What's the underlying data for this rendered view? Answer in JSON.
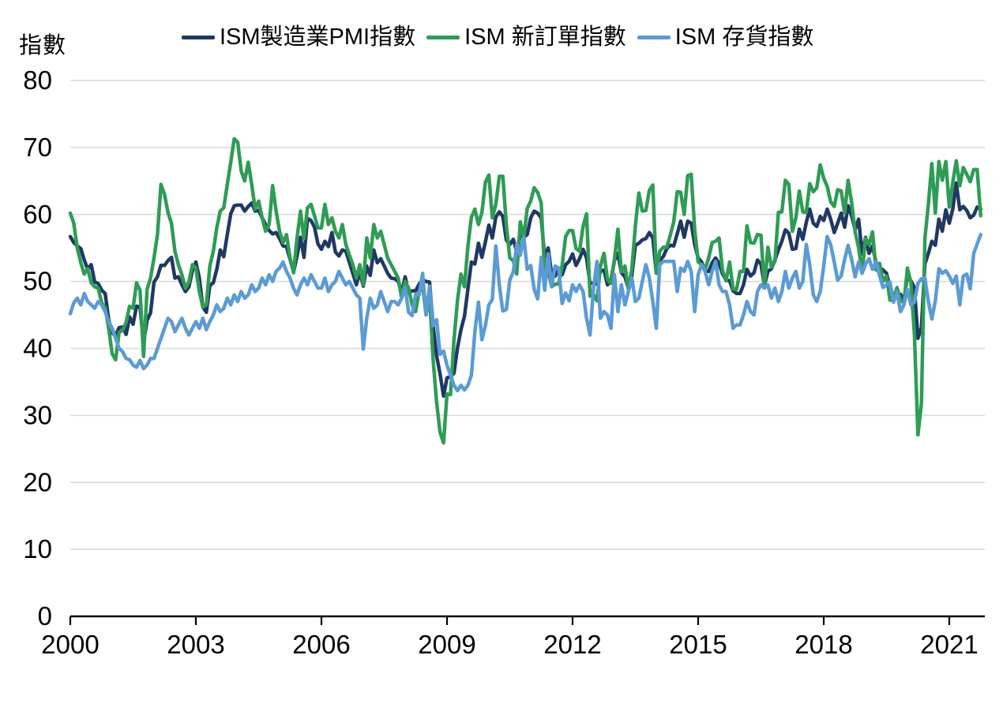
{
  "y_axis_title": "指數",
  "legend": [
    {
      "label": "ISM製造業PMI指數",
      "color": "#1F3864"
    },
    {
      "label": "ISM 新訂單指數",
      "color": "#2E9C55"
    },
    {
      "label": "ISM 存貨指數",
      "color": "#5B9BD5"
    }
  ],
  "chart_data": {
    "type": "line",
    "title": "",
    "x_start": "2000-01",
    "x_end": "2021-10",
    "frequency": "monthly",
    "x_ticks": [
      2000,
      2003,
      2006,
      2009,
      2012,
      2015,
      2018,
      2021
    ],
    "y_ticks": [
      0,
      10,
      20,
      30,
      40,
      50,
      60,
      70,
      80
    ],
    "ylim": [
      0,
      80
    ],
    "grid": "horizontal",
    "legend_position": "top",
    "colors": {
      "gridline": "#D9D9D9",
      "axis": "#000000"
    },
    "series": [
      {
        "name": "ISM製造業PMI指數",
        "color": "#1F3864",
        "values": [
          56.7,
          55.8,
          55.3,
          54.9,
          53.2,
          51.8,
          52.5,
          49.9,
          49.7,
          48.7,
          48.2,
          44.3,
          42.3,
          41.9,
          43.1,
          43.2,
          42.1,
          44.7,
          43.6,
          46.3,
          46.2,
          40.8,
          44.2,
          45.3,
          49.9,
          50.7,
          52.4,
          52.4,
          53.1,
          53.6,
          50.5,
          50.7,
          49.5,
          48.5,
          49.2,
          51.6,
          52.9,
          50.5,
          46.2,
          45.4,
          49.4,
          49.8,
          51.8,
          54.7,
          53.7,
          57.0,
          60.1,
          61.3,
          61.4,
          61.4,
          60.5,
          61.2,
          61.7,
          60.5,
          60.6,
          59.5,
          58.5,
          57.6,
          57.1,
          57.3,
          56.4,
          55.3,
          55.2,
          53.3,
          51.4,
          53.8,
          56.6,
          53.6,
          59.4,
          59.1,
          58.1,
          55.6,
          54.8,
          56.0,
          55.2,
          57.3,
          54.4,
          53.8,
          54.7,
          54.5,
          52.9,
          51.2,
          49.5,
          51.4,
          49.3,
          52.3,
          50.9,
          54.7,
          52.8,
          53.4,
          52.3,
          51.2,
          50.5,
          50.4,
          50.0,
          48.4,
          50.7,
          48.3,
          48.6,
          48.6,
          49.6,
          50.2,
          50.0,
          49.9,
          43.5,
          38.9,
          36.2,
          32.9,
          35.6,
          35.8,
          36.3,
          40.1,
          42.8,
          44.8,
          48.9,
          52.9,
          52.6,
          55.7,
          53.6,
          55.9,
          58.4,
          56.5,
          59.6,
          60.4,
          59.7,
          56.2,
          55.5,
          56.3,
          54.4,
          56.9,
          56.6,
          57.0,
          59.5,
          60.5,
          60.2,
          59.5,
          53.5,
          55.0,
          51.0,
          50.8,
          51.8,
          51.0,
          52.5,
          53.0,
          54.1,
          52.4,
          53.4,
          54.8,
          53.5,
          49.7,
          49.8,
          49.6,
          51.5,
          51.7,
          49.5,
          50.2,
          53.1,
          54.2,
          51.3,
          50.7,
          49.0,
          50.9,
          55.4,
          55.7,
          56.2,
          56.4,
          57.3,
          56.5,
          51.3,
          53.2,
          53.7,
          54.9,
          55.4,
          55.3,
          57.1,
          59.0,
          56.6,
          59.0,
          58.7,
          55.5,
          53.5,
          52.9,
          51.5,
          51.5,
          52.8,
          53.5,
          52.7,
          51.1,
          50.2,
          50.1,
          48.6,
          48.2,
          48.2,
          49.5,
          51.8,
          50.8,
          51.3,
          53.2,
          52.6,
          49.4,
          51.5,
          51.9,
          53.2,
          54.7,
          56.0,
          57.7,
          57.2,
          54.8,
          54.9,
          57.8,
          56.3,
          58.8,
          60.8,
          58.7,
          58.2,
          59.7,
          59.1,
          60.8,
          59.3,
          57.3,
          58.7,
          60.2,
          58.1,
          61.3,
          59.8,
          57.7,
          59.3,
          54.1,
          56.6,
          54.2,
          55.3,
          52.8,
          52.1,
          51.7,
          51.2,
          49.1,
          47.8,
          48.3,
          48.1,
          47.2,
          50.9,
          50.1,
          49.1,
          41.5,
          43.1,
          52.6,
          54.2,
          56.0,
          55.4,
          59.3,
          57.5,
          60.7,
          58.7,
          60.8,
          64.7,
          60.7,
          61.2,
          60.6,
          59.5,
          59.9,
          61.1,
          60.8
        ]
      },
      {
        "name": "ISM 新訂單指數",
        "color": "#2E9C55",
        "values": [
          60.2,
          58.7,
          55.0,
          52.8,
          51.1,
          51.9,
          49.8,
          49.2,
          49.0,
          46.8,
          46.1,
          43.0,
          39.2,
          38.3,
          42.4,
          42.7,
          43.9,
          46.3,
          46.0,
          49.8,
          48.7,
          38.8,
          48.8,
          50.5,
          53.5,
          57.0,
          64.5,
          63.0,
          60.3,
          58.7,
          54.5,
          52.5,
          51.0,
          49.0,
          49.9,
          52.5,
          52.0,
          48.5,
          46.2,
          46.5,
          52.3,
          54.5,
          58.0,
          60.5,
          61.0,
          64.5,
          67.8,
          71.3,
          70.8,
          66.5,
          65.0,
          67.8,
          64.5,
          60.8,
          62.0,
          59.5,
          57.5,
          58.5,
          64.3,
          60.5,
          57.5,
          55.8,
          57.0,
          53.5,
          51.3,
          56.5,
          60.5,
          56.4,
          61.0,
          61.5,
          59.8,
          58.0,
          58.0,
          61.5,
          58.5,
          59.5,
          57.5,
          56.5,
          58.5,
          55.5,
          54.0,
          52.5,
          50.5,
          52.5,
          49.5,
          56.5,
          53.5,
          58.5,
          56.5,
          57.5,
          55.5,
          53.5,
          52.5,
          51.5,
          50.5,
          47.5,
          50.0,
          49.0,
          46.5,
          45.5,
          48.5,
          49.5,
          45.0,
          48.0,
          38.5,
          32.0,
          27.5,
          25.9,
          33.2,
          33.1,
          41.2,
          47.2,
          51.1,
          49.2,
          55.3,
          59.6,
          60.8,
          58.5,
          60.3,
          64.8,
          65.9,
          59.5,
          61.5,
          65.7,
          65.7,
          58.5,
          53.5,
          53.1,
          51.1,
          58.9,
          56.6,
          60.9,
          62.0,
          64.0,
          63.3,
          61.7,
          51.0,
          51.6,
          49.2,
          49.6,
          49.6,
          52.4,
          56.7,
          57.6,
          57.6,
          54.9,
          54.5,
          58.2,
          60.1,
          47.8,
          48.0,
          47.1,
          52.3,
          54.2,
          50.3,
          49.7,
          53.3,
          57.8,
          51.4,
          52.3,
          48.8,
          51.9,
          58.3,
          63.2,
          60.5,
          60.6,
          63.6,
          64.4,
          51.2,
          54.5,
          55.1,
          55.1,
          56.9,
          58.9,
          63.4,
          63.3,
          60.0,
          65.8,
          66.0,
          57.8,
          52.9,
          52.5,
          51.8,
          53.5,
          55.8,
          56.0,
          56.5,
          51.6,
          50.1,
          52.9,
          48.9,
          48.8,
          51.5,
          51.5,
          58.3,
          55.8,
          55.7,
          57.0,
          56.9,
          49.1,
          55.1,
          52.1,
          53.0,
          60.3,
          60.4,
          65.1,
          64.5,
          57.5,
          59.5,
          63.5,
          60.4,
          60.3,
          64.6,
          63.4,
          64.0,
          67.4,
          65.4,
          64.2,
          61.9,
          61.2,
          63.7,
          63.5,
          60.2,
          65.1,
          61.8,
          57.4,
          55.0,
          51.3,
          56.5,
          55.5,
          57.4,
          51.7,
          52.7,
          50.0,
          50.8,
          47.2,
          47.3,
          49.1,
          47.2,
          46.8,
          52.0,
          49.8,
          42.2,
          27.1,
          31.8,
          56.4,
          61.5,
          67.6,
          60.2,
          67.9,
          65.1,
          67.9,
          61.1,
          64.8,
          68.0,
          64.3,
          67.0,
          66.0,
          64.9,
          66.7,
          66.7,
          59.8
        ]
      },
      {
        "name": "ISM 存貨指數",
        "color": "#5B9BD5",
        "values": [
          45.2,
          46.8,
          47.5,
          46.5,
          48.2,
          47.0,
          46.5,
          46.0,
          47.0,
          46.5,
          45.5,
          44.0,
          43.0,
          41.5,
          40.0,
          39.5,
          38.5,
          38.3,
          37.5,
          37.2,
          38.2,
          37.0,
          37.5,
          38.5,
          38.5,
          40.0,
          41.5,
          43.0,
          44.5,
          44.0,
          42.5,
          43.5,
          44.5,
          43.0,
          42.0,
          43.0,
          44.0,
          43.0,
          44.5,
          42.8,
          44.0,
          45.0,
          46.5,
          45.5,
          46.0,
          47.5,
          46.5,
          48.0,
          47.0,
          48.5,
          47.5,
          48.0,
          49.5,
          48.5,
          49.0,
          50.5,
          49.5,
          51.0,
          50.0,
          51.5,
          52.0,
          52.9,
          51.5,
          50.5,
          49.0,
          48.0,
          49.5,
          50.5,
          49.5,
          51.0,
          50.0,
          49.0,
          49.0,
          50.5,
          48.5,
          49.5,
          50.0,
          51.5,
          50.5,
          49.5,
          50.0,
          49.0,
          48.0,
          47.5,
          39.9,
          44.5,
          47.5,
          46.0,
          46.5,
          48.5,
          47.0,
          45.5,
          47.0,
          47.0,
          46.5,
          47.5,
          49.1,
          45.4,
          44.9,
          48.1,
          48.0,
          51.2,
          45.0,
          49.3,
          43.4,
          44.3,
          39.1,
          39.6,
          37.5,
          36.0,
          34.5,
          33.7,
          34.5,
          33.8,
          34.5,
          36.0,
          42.5,
          46.9,
          41.3,
          43.4,
          46.5,
          47.3,
          55.3,
          49.4,
          45.6,
          45.8,
          50.2,
          51.4,
          55.6,
          53.9,
          56.7,
          51.8,
          52.4,
          48.8,
          47.4,
          53.6,
          48.7,
          54.1,
          49.3,
          52.3,
          52.0,
          46.7,
          48.3,
          47.1,
          49.5,
          48.5,
          49.5,
          48.5,
          44.5,
          42.0,
          49.0,
          53.0,
          44.5,
          45.5,
          45.0,
          43.0,
          51.0,
          45.5,
          49.5,
          46.5,
          48.5,
          50.5,
          47.0,
          47.5,
          50.0,
          52.5,
          50.5,
          47.0,
          43.0,
          52.5,
          53.0,
          53.0,
          53.0,
          53.0,
          48.5,
          52.0,
          51.5,
          53.0,
          51.5,
          45.5,
          51.0,
          52.5,
          51.5,
          49.5,
          51.5,
          53.0,
          49.5,
          48.5,
          48.5,
          46.5,
          43.0,
          43.5,
          43.5,
          45.0,
          47.0,
          45.5,
          45.0,
          48.5,
          49.5,
          49.0,
          49.5,
          47.5,
          49.0,
          47.0,
          48.5,
          51.5,
          49.0,
          50.5,
          51.5,
          49.0,
          50.0,
          55.5,
          52.5,
          48.0,
          47.0,
          48.5,
          52.3,
          56.7,
          55.5,
          52.9,
          50.2,
          50.8,
          53.3,
          55.4,
          53.3,
          50.7,
          52.9,
          51.2,
          52.6,
          53.4,
          51.8,
          52.9,
          50.9,
          49.1,
          49.5,
          49.9,
          46.9,
          48.4,
          45.5,
          46.5,
          48.8,
          46.5,
          46.9,
          49.7,
          50.4,
          50.5,
          47.0,
          44.4,
          47.1,
          51.9,
          51.2,
          51.6,
          50.8,
          49.7,
          50.8,
          46.5,
          50.8,
          51.1,
          48.9,
          54.2,
          55.6,
          57.0
        ]
      }
    ]
  }
}
